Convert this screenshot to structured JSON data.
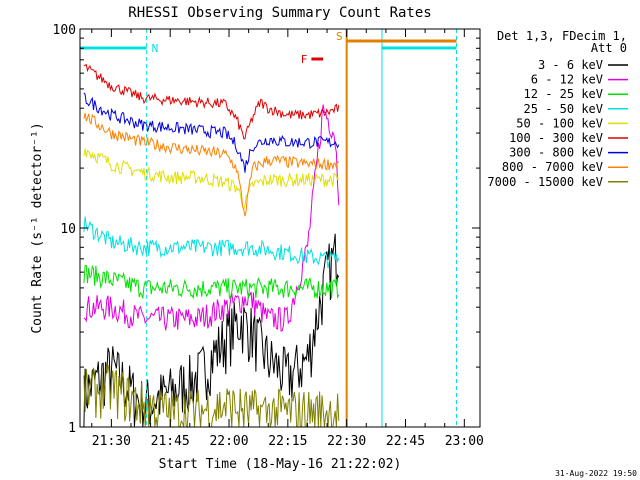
{
  "chart_data": {
    "type": "line",
    "title": "RHESSI Observing Summary Count Rates",
    "xlabel": "Start Time (18-May-16 21:22:02)",
    "ylabel": "Count Rate (s⁻¹ detector⁻¹)",
    "x_start": "21:22:02",
    "x_end": "23:04",
    "xlim": [
      "21:22",
      "23:04"
    ],
    "ylim": [
      1,
      100
    ],
    "y_scale": "log",
    "x_ticks": [
      "21:30",
      "21:45",
      "22:00",
      "22:15",
      "22:30",
      "22:45",
      "23:00"
    ],
    "y_ticks": [
      "1",
      "10",
      "100"
    ],
    "legend_title": [
      "Det 1,3, FDecim 1,",
      "Att 0"
    ],
    "legend_position": "right",
    "timestamp": "31-Aug-2022 19:50",
    "flags": [
      {
        "label": "N",
        "color": "#00e0e0",
        "start": "21:22",
        "end": "21:39"
      },
      {
        "label": "F",
        "color": "#e00000",
        "start": "22:21",
        "end": "22:24"
      },
      {
        "label": "S",
        "color": "#e08000",
        "start": "22:30",
        "end": "22:58"
      },
      {
        "label": "",
        "color": "#00e0e0",
        "start": "22:39",
        "end": "22:58"
      }
    ],
    "vertical_lines": [
      {
        "time": "21:39",
        "color": "#00e0e0",
        "style": "dashed"
      },
      {
        "time": "22:30",
        "color": "#e08000",
        "style": "solid"
      },
      {
        "time": "22:39",
        "color": "#00e0e0",
        "style": "solid"
      },
      {
        "time": "22:58",
        "color": "#00e0e0",
        "style": "dashed"
      }
    ],
    "series": [
      {
        "name": "3 - 6 keV",
        "color": "#000000",
        "x": [
          "21:23",
          "21:30",
          "21:38",
          "21:45",
          "21:52",
          "21:59",
          "22:03",
          "22:06",
          "22:10",
          "22:15",
          "22:20",
          "22:25",
          "22:28"
        ],
        "y": [
          1.5,
          2.0,
          1.3,
          1.5,
          1.8,
          2.8,
          3.5,
          3.0,
          2.2,
          1.8,
          2.2,
          6.0,
          8.0
        ]
      },
      {
        "name": "6 - 12 keV",
        "color": "#e000e0",
        "x": [
          "21:23",
          "21:30",
          "21:38",
          "21:45",
          "21:52",
          "21:59",
          "22:05",
          "22:10",
          "22:15",
          "22:20",
          "22:24",
          "22:27",
          "22:28"
        ],
        "y": [
          4.0,
          4.0,
          3.5,
          3.5,
          3.5,
          4.0,
          4.5,
          3.5,
          3.5,
          8.0,
          40.0,
          30.0,
          15.0
        ]
      },
      {
        "name": "12 - 25 keV",
        "color": "#00e000",
        "x": [
          "21:23",
          "21:30",
          "21:38",
          "21:45",
          "21:52",
          "21:59",
          "22:05",
          "22:10",
          "22:15",
          "22:20",
          "22:25",
          "22:28"
        ],
        "y": [
          6.0,
          5.5,
          5.0,
          5.0,
          5.0,
          5.0,
          5.0,
          5.0,
          5.0,
          5.0,
          5.0,
          5.0
        ]
      },
      {
        "name": "25 - 50 keV",
        "color": "#00e0e0",
        "x": [
          "21:23",
          "21:30",
          "21:38",
          "21:45",
          "21:52",
          "21:59",
          "22:05",
          "22:10",
          "22:15",
          "22:20",
          "22:25",
          "22:28"
        ],
        "y": [
          10.5,
          8.5,
          8.0,
          8.0,
          8.0,
          8.0,
          8.0,
          7.8,
          7.5,
          7.2,
          7.0,
          7.0
        ]
      },
      {
        "name": "50 - 100 keV",
        "color": "#e0e000",
        "x": [
          "21:23",
          "21:30",
          "21:38",
          "21:45",
          "21:52",
          "21:59",
          "22:02",
          "22:04",
          "22:06",
          "22:10",
          "22:15",
          "22:20",
          "22:25",
          "22:28"
        ],
        "y": [
          25.0,
          21.0,
          19.0,
          18.0,
          18.0,
          17.0,
          16.0,
          13.0,
          16.5,
          17.5,
          17.5,
          17.5,
          17.5,
          17.5
        ]
      },
      {
        "name": "100 - 300 keV",
        "color": "#e00000",
        "x": [
          "21:23",
          "21:30",
          "21:38",
          "21:45",
          "21:52",
          "21:59",
          "22:02",
          "22:04",
          "22:06",
          "22:08",
          "22:10",
          "22:15",
          "22:20",
          "22:25",
          "22:28"
        ],
        "y": [
          65.0,
          52.0,
          45.0,
          44.0,
          43.0,
          42.0,
          35.0,
          28.0,
          36.0,
          43.0,
          40.0,
          37.0,
          37.0,
          38.0,
          40.0
        ]
      },
      {
        "name": "300 - 800 keV",
        "color": "#0000e0",
        "x": [
          "21:23",
          "21:30",
          "21:38",
          "21:45",
          "21:52",
          "21:59",
          "22:02",
          "22:04",
          "22:06",
          "22:10",
          "22:15",
          "22:20",
          "22:25",
          "22:28"
        ],
        "y": [
          45.0,
          37.0,
          33.0,
          32.0,
          31.0,
          30.0,
          26.0,
          20.0,
          26.0,
          28.0,
          27.0,
          27.0,
          27.0,
          27.0
        ]
      },
      {
        "name": "800 - 7000 keV",
        "color": "#ff8000",
        "x": [
          "21:23",
          "21:30",
          "21:38",
          "21:45",
          "21:52",
          "21:59",
          "22:02",
          "22:04",
          "22:06",
          "22:10",
          "22:15",
          "22:20",
          "22:25",
          "22:28"
        ],
        "y": [
          37.0,
          30.0,
          27.0,
          25.5,
          24.5,
          23.5,
          20.0,
          11.5,
          20.0,
          22.0,
          21.5,
          21.0,
          21.0,
          21.0
        ]
      },
      {
        "name": "7000 - 15000 keV",
        "color": "#808000",
        "x": [
          "21:23",
          "21:30",
          "21:38",
          "21:45",
          "21:52",
          "21:59",
          "22:05",
          "22:10",
          "22:15",
          "22:20",
          "22:25",
          "22:28"
        ],
        "y": [
          1.5,
          1.6,
          1.3,
          1.2,
          1.2,
          1.3,
          1.2,
          1.2,
          1.2,
          1.2,
          1.2,
          1.2
        ]
      }
    ]
  }
}
